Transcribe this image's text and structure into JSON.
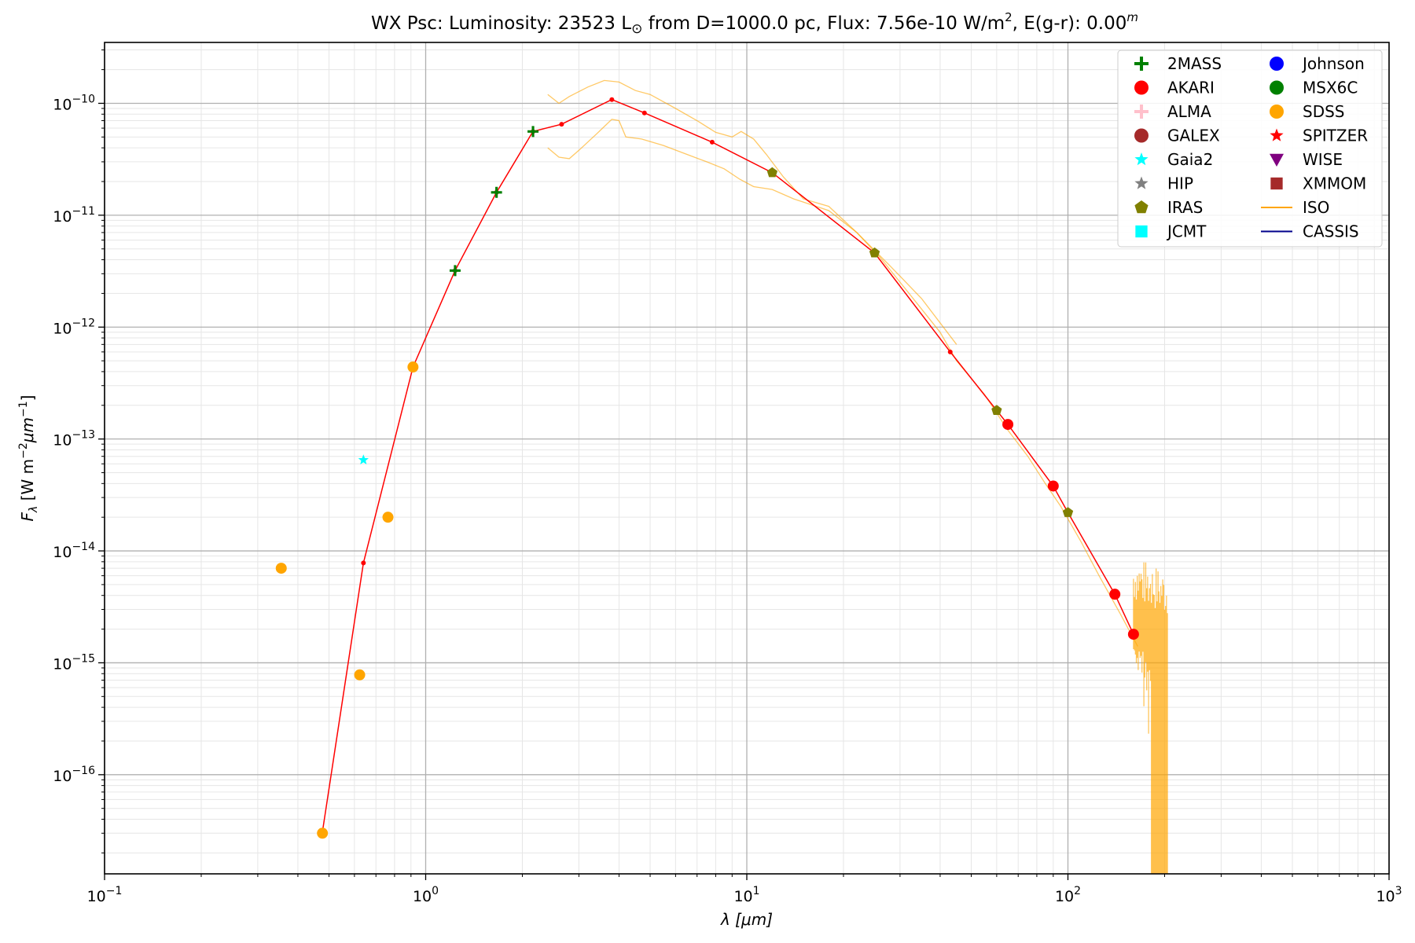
{
  "chart_data": {
    "type": "scatter",
    "title": {
      "prefix": "WX Psc:  Luminosity: 23523 L",
      "sun_symbol": "⊙",
      "middle": " from D=1000.0 pc, Flux: 7.56e-10 W/m",
      "middle_sup": "2",
      "suffix": ", E(g-r): 0.00",
      "suffix_sup": "m"
    },
    "xlabel": "λ [μm]",
    "ylabel": "F_λ [W m^-2 μm^-1]",
    "x_scale": "log",
    "y_scale": "log",
    "xlim": [
      0.1,
      1000
    ],
    "ylim": [
      1.3e-17,
      3.5e-10
    ],
    "grid": true,
    "legend_placement": "top-right",
    "x_ticks": [
      {
        "value": 0.1,
        "base": "10",
        "exp": "−1"
      },
      {
        "value": 1,
        "base": "10",
        "exp": "0"
      },
      {
        "value": 10,
        "base": "10",
        "exp": "1"
      },
      {
        "value": 100,
        "base": "10",
        "exp": "2"
      },
      {
        "value": 1000,
        "base": "10",
        "exp": "3"
      }
    ],
    "y_ticks": [
      {
        "value": 1e-16,
        "base": "10",
        "exp": "−16"
      },
      {
        "value": 1e-15,
        "base": "10",
        "exp": "−15"
      },
      {
        "value": 1e-14,
        "base": "10",
        "exp": "−14"
      },
      {
        "value": 1e-13,
        "base": "10",
        "exp": "−13"
      },
      {
        "value": 1e-12,
        "base": "10",
        "exp": "−12"
      },
      {
        "value": 1e-11,
        "base": "10",
        "exp": "−11"
      },
      {
        "value": 1e-10,
        "base": "10",
        "exp": "−10"
      }
    ],
    "legend": {
      "columns": [
        [
          {
            "label": "2MASS",
            "marker": "plus",
            "color": "#008000"
          },
          {
            "label": "AKARI",
            "marker": "circle",
            "color": "#ff0000"
          },
          {
            "label": "ALMA",
            "marker": "plus",
            "color": "#ffc0cb"
          },
          {
            "label": "GALEX",
            "marker": "circle",
            "color": "#a52a2a"
          },
          {
            "label": "Gaia2",
            "marker": "star",
            "color": "#00ffff"
          },
          {
            "label": "HIP",
            "marker": "star",
            "color": "#808080"
          },
          {
            "label": "IRAS",
            "marker": "pentagon",
            "color": "#808000"
          },
          {
            "label": "JCMT",
            "marker": "square",
            "color": "#00ffff"
          }
        ],
        [
          {
            "label": "Johnson",
            "marker": "circle",
            "color": "#0000ff"
          },
          {
            "label": "MSX6C",
            "marker": "circle",
            "color": "#008000"
          },
          {
            "label": "SDSS",
            "marker": "circle",
            "color": "#ffa500"
          },
          {
            "label": "SPITZER",
            "marker": "star",
            "color": "#ff0000"
          },
          {
            "label": "WISE",
            "marker": "triangle-down",
            "color": "#800080"
          },
          {
            "label": "XMMOM",
            "marker": "square",
            "color": "#a52a2a"
          },
          {
            "label": "ISO",
            "marker": "line",
            "color": "#ffa500"
          },
          {
            "label": "CASSIS",
            "marker": "line",
            "color": "#00008b"
          }
        ]
      ]
    },
    "series": [
      {
        "name": "SDSS",
        "marker": "circle",
        "color": "#ffa500",
        "points": [
          [
            0.355,
            7e-15
          ],
          [
            0.477,
            3e-17
          ],
          [
            0.623,
            7.8e-16
          ],
          [
            0.763,
            2e-14
          ],
          [
            0.913,
            4.4e-13
          ]
        ]
      },
      {
        "name": "Gaia2",
        "marker": "star",
        "color": "#00ffff",
        "points": [
          [
            0.64,
            6.5e-14
          ]
        ]
      },
      {
        "name": "2MASS",
        "marker": "plus",
        "color": "#008000",
        "points": [
          [
            1.235,
            3.2e-12
          ],
          [
            1.662,
            1.6e-11
          ],
          [
            2.159,
            5.6e-11
          ]
        ]
      },
      {
        "name": "IRAS",
        "marker": "pentagon",
        "color": "#808000",
        "points": [
          [
            12,
            2.4e-11
          ],
          [
            25,
            4.6e-12
          ],
          [
            60,
            1.8e-13
          ],
          [
            100,
            2.2e-14
          ]
        ]
      },
      {
        "name": "AKARI",
        "marker": "circle",
        "color": "#ff0000",
        "points": [
          [
            65,
            1.35e-13
          ],
          [
            90,
            3.8e-14
          ],
          [
            140,
            4.1e-15
          ],
          [
            160,
            1.8e-15
          ]
        ]
      }
    ],
    "model_line": {
      "color": "#ff0000",
      "points": [
        [
          0.477,
          3.1e-17
        ],
        [
          0.64,
          7.8e-15
        ],
        [
          0.913,
          4.4e-13
        ],
        [
          1.235,
          3.2e-12
        ],
        [
          1.662,
          1.6e-11
        ],
        [
          2.159,
          5.6e-11
        ],
        [
          2.65,
          6.5e-11
        ],
        [
          3.8,
          1.08e-10
        ],
        [
          4.8,
          8.2e-11
        ],
        [
          7.8,
          4.5e-11
        ],
        [
          12,
          2.4e-11
        ],
        [
          25,
          4.6e-12
        ],
        [
          43,
          6e-13
        ],
        [
          60,
          1.8e-13
        ],
        [
          65,
          1.35e-13
        ],
        [
          90,
          3.8e-14
        ],
        [
          100,
          2.2e-14
        ],
        [
          140,
          4.1e-15
        ],
        [
          160,
          1.8e-15
        ]
      ]
    },
    "iso_spectra": {
      "color": "#ffa500",
      "upper": [
        [
          2.4,
          1.2e-10
        ],
        [
          2.6,
          1e-10
        ],
        [
          2.8,
          1.15e-10
        ],
        [
          3.2,
          1.4e-10
        ],
        [
          3.6,
          1.6e-10
        ],
        [
          4.0,
          1.55e-10
        ],
        [
          4.5,
          1.3e-10
        ],
        [
          5.0,
          1.2e-10
        ],
        [
          6.0,
          9e-11
        ],
        [
          7.0,
          7e-11
        ],
        [
          8.0,
          5.5e-11
        ],
        [
          9.0,
          5e-11
        ],
        [
          9.6,
          5.6e-11
        ],
        [
          10.5,
          4.8e-11
        ],
        [
          11.5,
          3.5e-11
        ],
        [
          13,
          2.2e-11
        ],
        [
          15,
          1.4e-11
        ],
        [
          18,
          1.2e-11
        ],
        [
          22,
          7e-12
        ],
        [
          28,
          3.5e-12
        ],
        [
          35,
          1.8e-12
        ],
        [
          45,
          7e-13
        ]
      ],
      "lower": [
        [
          2.4,
          4e-11
        ],
        [
          2.6,
          3.3e-11
        ],
        [
          2.8,
          3.2e-11
        ],
        [
          3.0,
          3.8e-11
        ],
        [
          3.4,
          5.3e-11
        ],
        [
          3.8,
          7.2e-11
        ],
        [
          4.0,
          7e-11
        ],
        [
          4.2,
          5e-11
        ],
        [
          4.7,
          4.8e-11
        ],
        [
          5.5,
          4.2e-11
        ],
        [
          6.5,
          3.5e-11
        ],
        [
          7.5,
          3e-11
        ],
        [
          8.5,
          2.6e-11
        ],
        [
          9.5,
          2.1e-11
        ],
        [
          10.5,
          1.8e-11
        ],
        [
          12,
          1.7e-11
        ],
        [
          14,
          1.4e-11
        ],
        [
          18,
          1.1e-11
        ],
        [
          22,
          7e-12
        ],
        [
          26,
          4.2e-12
        ],
        [
          32,
          2e-12
        ],
        [
          40,
          9e-13
        ],
        [
          45,
          5e-13
        ],
        [
          55,
          2.5e-13
        ],
        [
          65,
          1.2e-13
        ],
        [
          75,
          7e-14
        ],
        [
          85,
          4e-14
        ],
        [
          95,
          2.5e-14
        ],
        [
          110,
          1.2e-14
        ],
        [
          125,
          6e-15
        ],
        [
          145,
          2.8e-15
        ],
        [
          165,
          1.4e-15
        ]
      ],
      "noise_region": {
        "x_start": 160,
        "x_end": 205,
        "y_high": 3.5e-15,
        "y_low": 1.3e-17
      }
    }
  }
}
